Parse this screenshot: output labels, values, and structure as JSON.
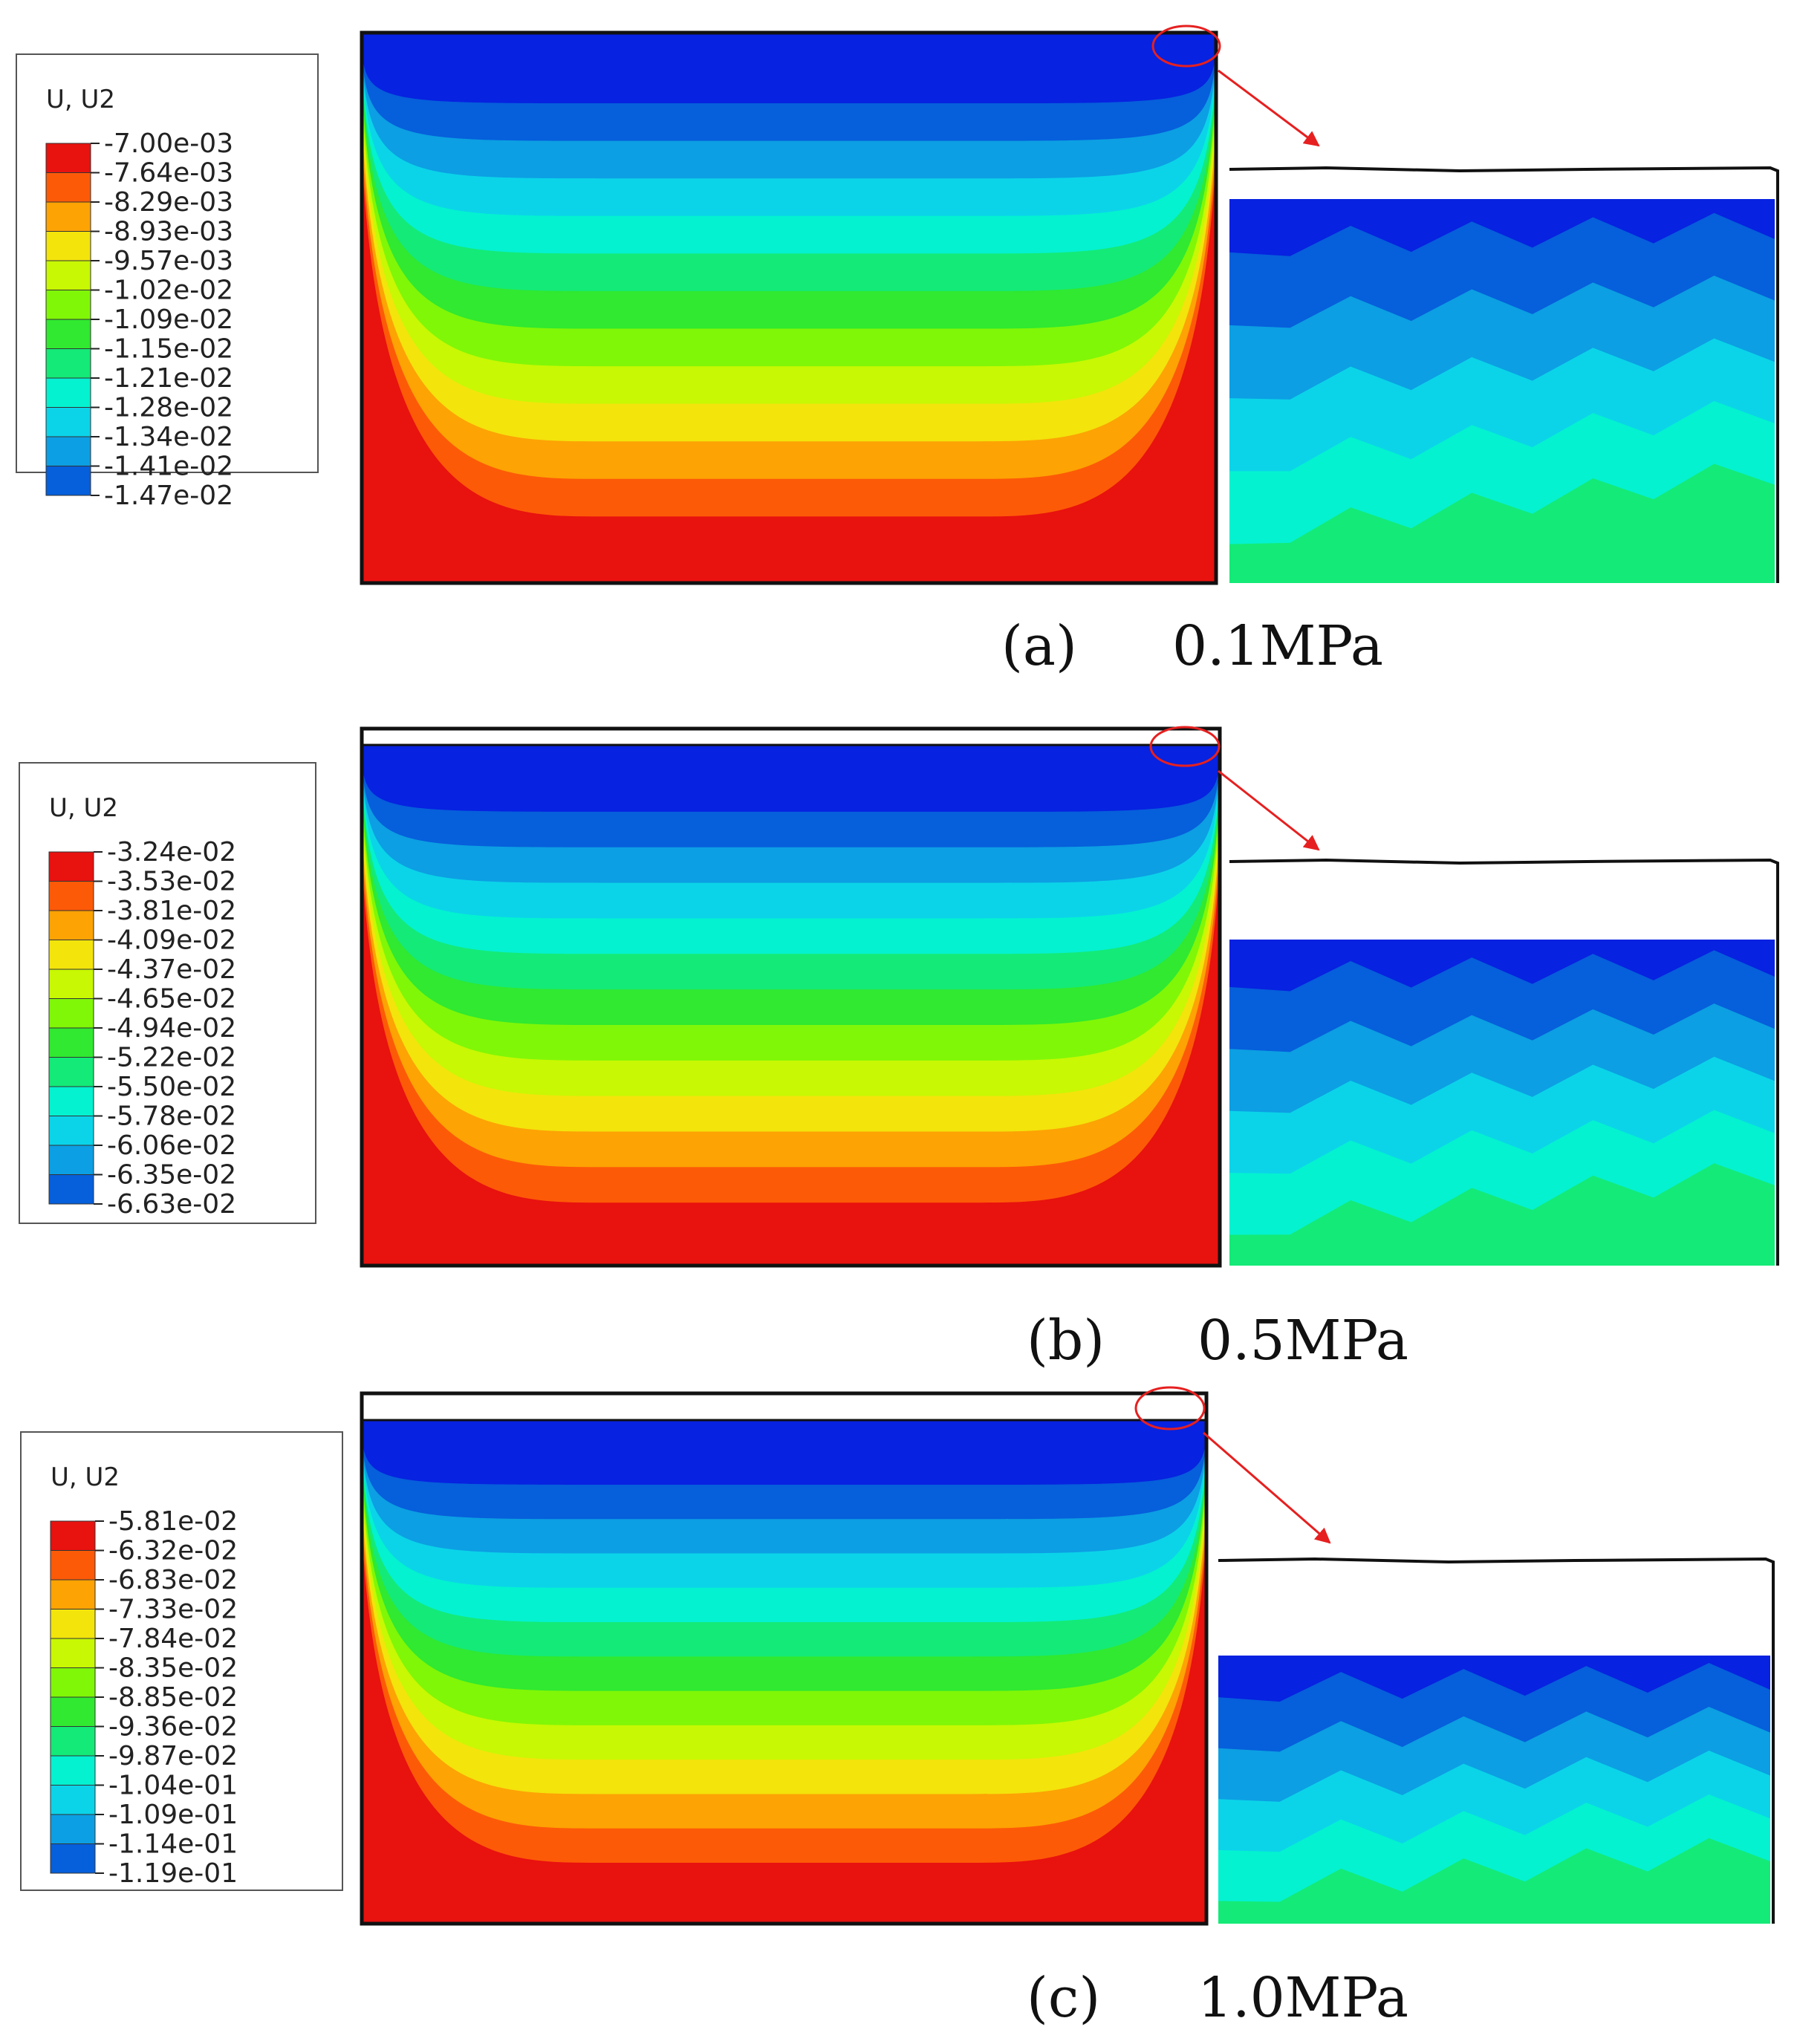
{
  "panels": [
    {
      "id": "a",
      "caption_label": "(a)",
      "caption_value": "0.1MPa",
      "legend": {
        "title": "U, U2",
        "values": [
          "-7.00e-03",
          "-7.64e-03",
          "-8.29e-03",
          "-8.93e-03",
          "-9.57e-03",
          "-1.02e-02",
          "-1.09e-02",
          "-1.15e-02",
          "-1.21e-02",
          "-1.28e-02",
          "-1.34e-02",
          "-1.41e-02",
          "-1.47e-02"
        ]
      }
    },
    {
      "id": "b",
      "caption_label": "(b)",
      "caption_value": "0.5MPa",
      "legend": {
        "title": "U, U2",
        "values": [
          "-3.24e-02",
          "-3.53e-02",
          "-3.81e-02",
          "-4.09e-02",
          "-4.37e-02",
          "-4.65e-02",
          "-4.94e-02",
          "-5.22e-02",
          "-5.50e-02",
          "-5.78e-02",
          "-6.06e-02",
          "-6.35e-02",
          "-6.63e-02"
        ]
      }
    },
    {
      "id": "c",
      "caption_label": "(c)",
      "caption_value": "1.0MPa",
      "legend": {
        "title": "U, U2",
        "values": [
          "-5.81e-02",
          "-6.32e-02",
          "-6.83e-02",
          "-7.33e-02",
          "-7.84e-02",
          "-8.35e-02",
          "-8.85e-02",
          "-9.36e-02",
          "-9.87e-02",
          "-1.04e-01",
          "-1.09e-01",
          "-1.14e-01",
          "-1.19e-01"
        ]
      }
    }
  ],
  "colors": {
    "contour_bands": [
      "#e8120f",
      "#fd5a07",
      "#fda304",
      "#f3e40c",
      "#c8f803",
      "#80f707",
      "#30e930",
      "#14ea77",
      "#04f2d0",
      "#0bd4e9",
      "#0c9fe3",
      "#065fdb",
      "#0722e0"
    ],
    "arrow": "#e62020",
    "outline": "#111111"
  }
}
